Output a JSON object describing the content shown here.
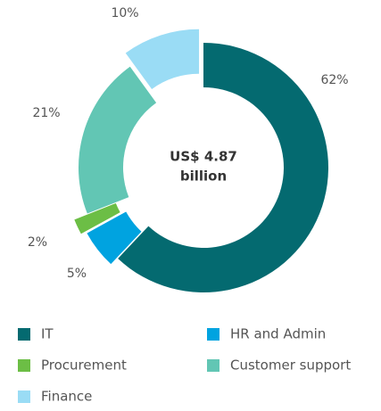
{
  "chart_data": {
    "type": "donut",
    "center_text": [
      "US$ 4.87",
      "billion"
    ],
    "categories": [
      "IT",
      "HR and Admin",
      "Procurement",
      "Customer support",
      "Finance"
    ],
    "values": [
      62,
      5,
      2,
      21,
      10
    ],
    "value_labels": [
      "62%",
      "5%",
      "2%",
      "21%",
      "10%"
    ],
    "colors": [
      "#046a70",
      "#00a3e0",
      "#6cbe45",
      "#62c6b4",
      "#9adcf5"
    ],
    "legend": "bottom"
  }
}
